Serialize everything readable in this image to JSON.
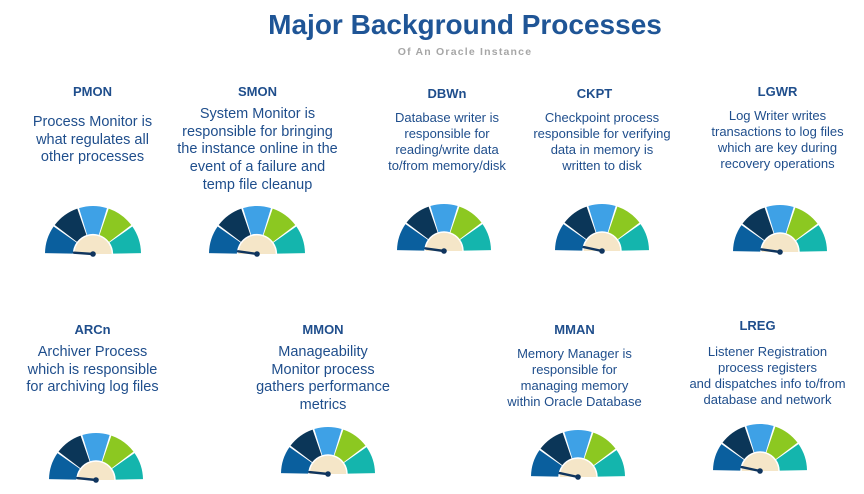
{
  "title": "Major Background Processes",
  "subtitle": "Of An Oracle Instance",
  "processes": [
    {
      "name": "PMON",
      "description": "Process Monitor is\nwhat regulates all\nother processes"
    },
    {
      "name": "SMON",
      "description": "System Monitor is\nresponsible for bringing\nthe instance online in the\nevent of a failure and\ntemp file cleanup"
    },
    {
      "name": "DBWn",
      "description": "Database writer is\nresponsible for\nreading/write data\nto/from memory/disk"
    },
    {
      "name": "CKPT",
      "description": "Checkpoint process\nresponsible for verifying\ndata in memory is\nwritten to disk"
    },
    {
      "name": "LGWR",
      "description": "Log Writer writes\ntransactions to log files\nwhich are key during\nrecovery operations"
    },
    {
      "name": "ARCn",
      "description": "Archiver Process\nwhich is responsible\nfor archiving log files"
    },
    {
      "name": "MMON",
      "description": "Manageability\nMonitor process\ngathers performance\nmetrics"
    },
    {
      "name": "MMAN",
      "description": "Memory Manager is\nresponsible for\nmanaging memory\nwithin Oracle Database"
    },
    {
      "name": "LREG",
      "description": "Listener Registration\nprocess registers\nand dispatches info to/from\ndatabase and network"
    }
  ],
  "gauge_colors": [
    "#0a5f9e",
    "#0b3658",
    "#3ea1e6",
    "#8cc821",
    "#14b5ad"
  ],
  "gauge_center_color": "#f5e6c8",
  "needle_color": "#10355e"
}
